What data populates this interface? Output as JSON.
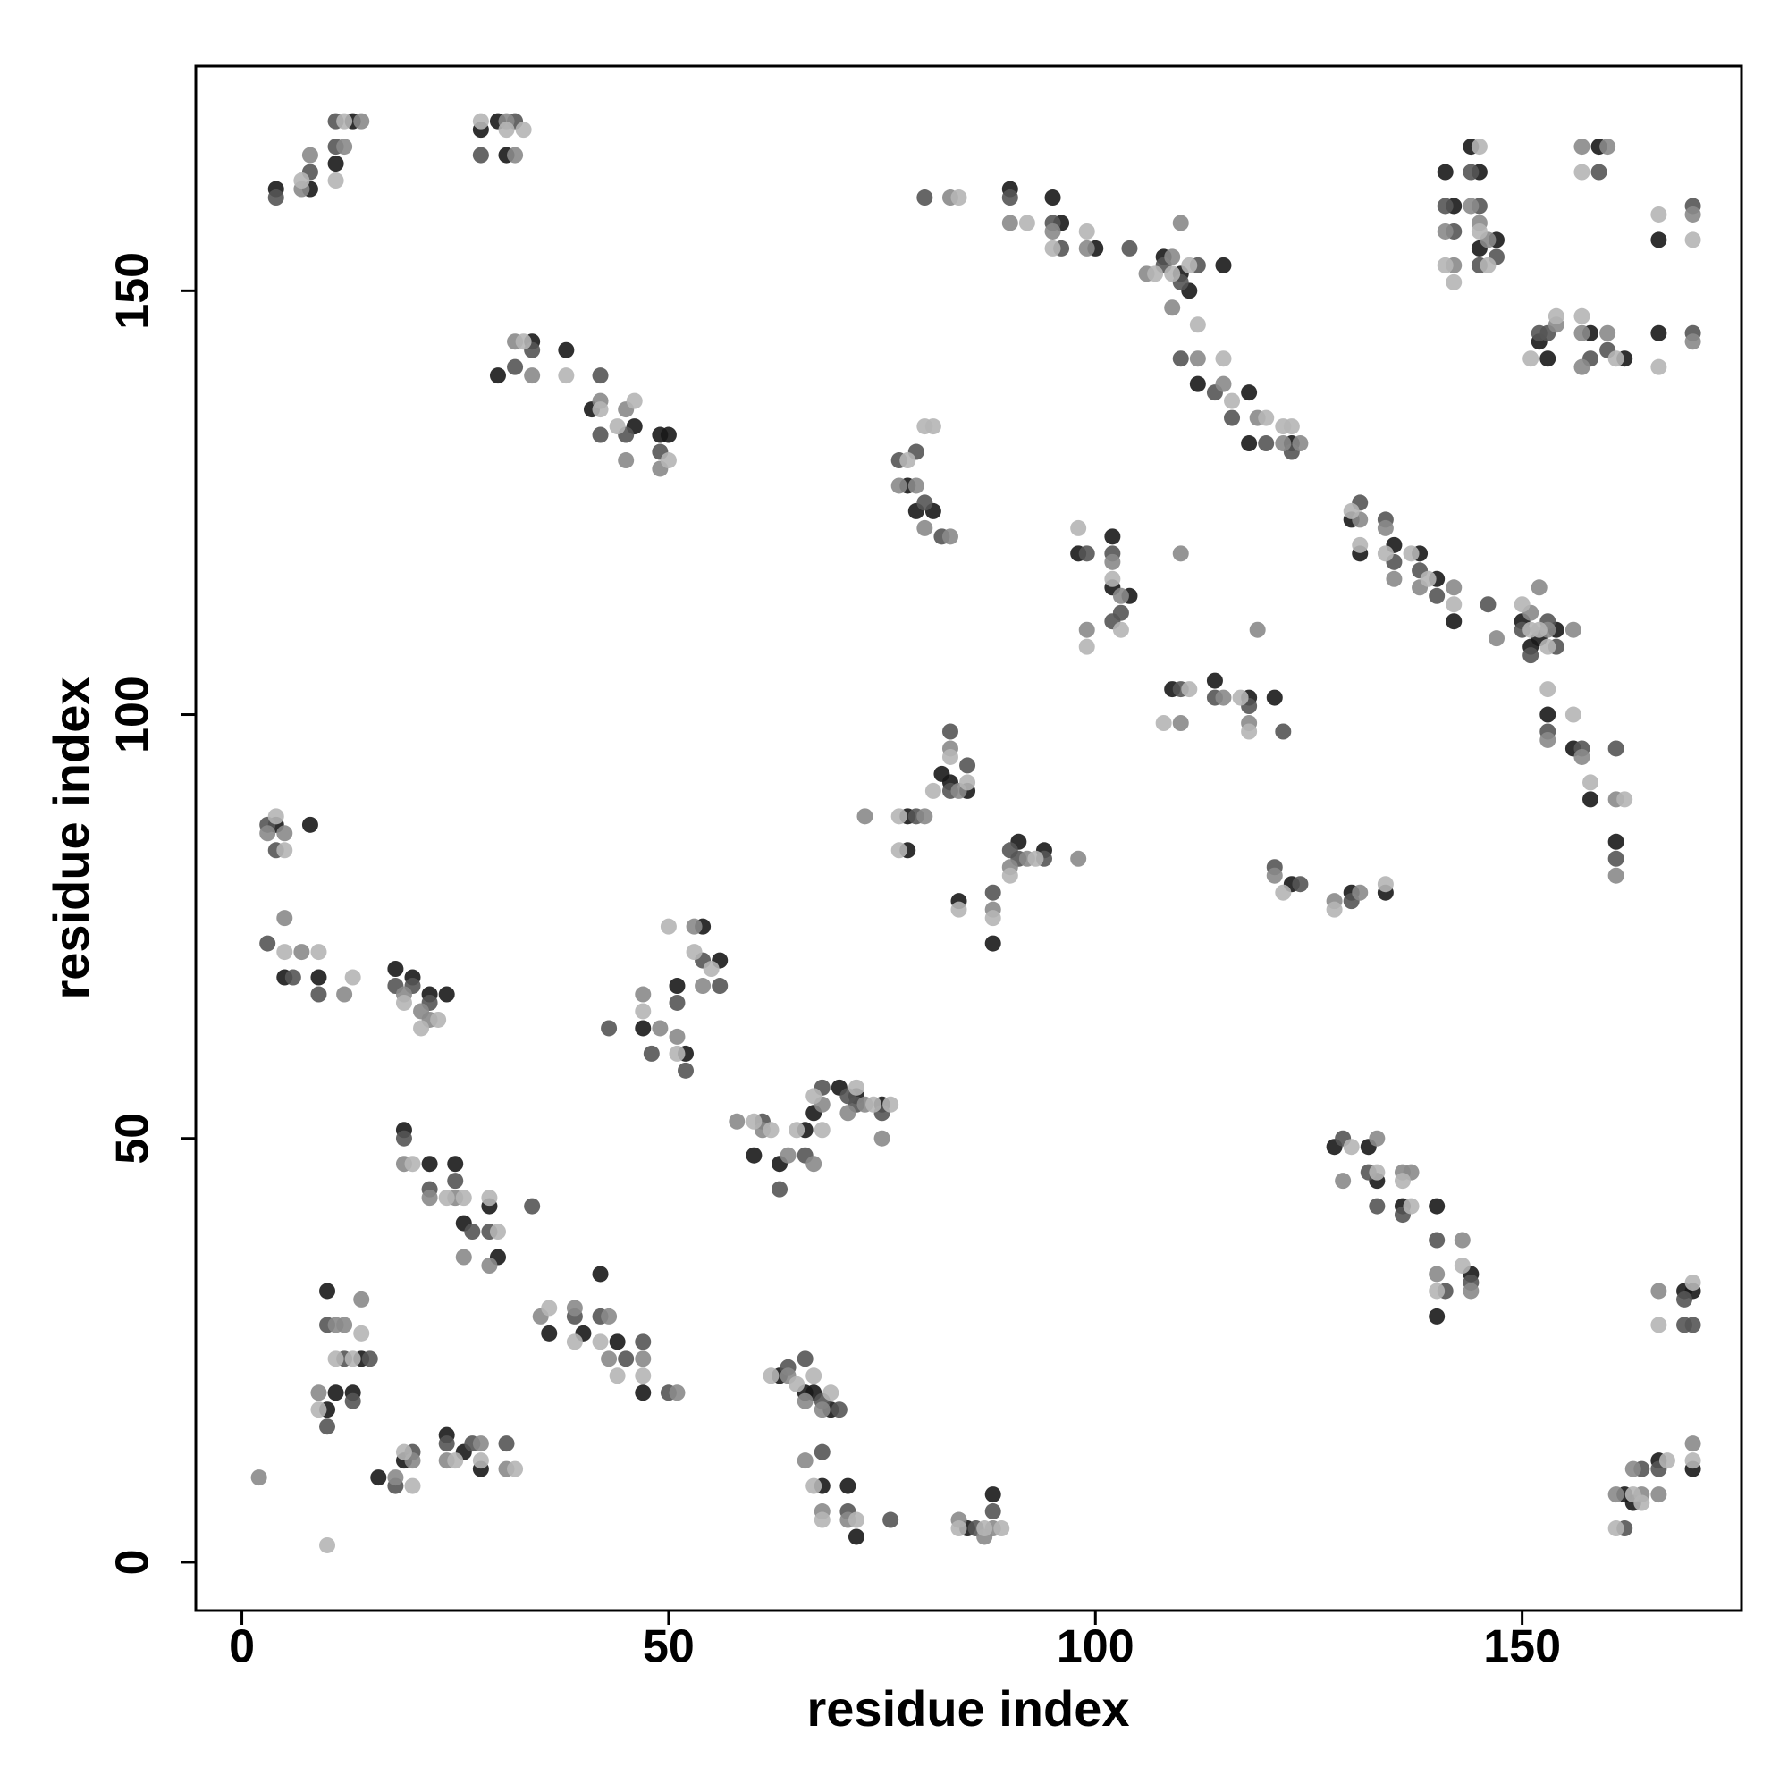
{
  "chart_data": {
    "type": "scatter",
    "xlabel": "residue index",
    "ylabel": "residue index",
    "xlim": [
      -5.4,
      175.7
    ],
    "ylim": [
      -5.7,
      176.5
    ],
    "xticks": [
      0,
      50,
      100,
      150
    ],
    "yticks": [
      0,
      50,
      100,
      150
    ],
    "series": [
      {
        "color": "#1a1a1a",
        "x": [
          4,
          8,
          11,
          13,
          28,
          31,
          30,
          90,
          95,
          96,
          100,
          108,
          110,
          111,
          115,
          112,
          118,
          118,
          123,
          141,
          142,
          144,
          145,
          145,
          147,
          159,
          166,
          153,
          152,
          158,
          162,
          166,
          30,
          34,
          38,
          41,
          46,
          49,
          50,
          78,
          79,
          81,
          98,
          102,
          102,
          104,
          109,
          114,
          118,
          121,
          130,
          131,
          135,
          138,
          140,
          142,
          150,
          151,
          152,
          154,
          153,
          156,
          158,
          161,
          82,
          83,
          85,
          78,
          78,
          91,
          94,
          84,
          88,
          123,
          130,
          134,
          4,
          8,
          5,
          9,
          18,
          20,
          22,
          24,
          47,
          51,
          52,
          54,
          56,
          60,
          63,
          66,
          67,
          70,
          72,
          75,
          19,
          22,
          25,
          26,
          29,
          30,
          36,
          40,
          44,
          42,
          47,
          63,
          66,
          67,
          69,
          68,
          71,
          72,
          85,
          88,
          10,
          11,
          13,
          14,
          10,
          16,
          19,
          24,
          26,
          28,
          128,
          132,
          133,
          136,
          140,
          140,
          144,
          169,
          170,
          170,
          162,
          163,
          166
        ],
        "values": [
          162,
          162,
          165,
          170,
          169,
          166,
          170,
          162,
          161,
          158,
          155,
          154,
          152,
          150,
          153,
          139,
          138,
          132,
          132,
          164,
          160,
          167,
          164,
          155,
          156,
          167,
          156,
          142,
          144,
          145,
          142,
          145,
          140,
          144,
          143,
          136,
          134,
          133,
          133,
          127,
          124,
          124,
          119,
          121,
          115,
          114,
          103,
          104,
          102,
          102,
          123,
          119,
          120,
          119,
          116,
          111,
          111,
          108,
          109,
          110,
          100,
          96,
          90,
          85,
          93,
          92,
          91,
          88,
          84,
          85,
          84,
          78,
          73,
          80,
          79,
          79,
          87,
          87,
          69,
          69,
          70,
          69,
          67,
          67,
          63,
          68,
          60,
          75,
          71,
          48,
          47,
          51,
          53,
          56,
          55,
          54,
          51,
          47,
          47,
          40,
          42,
          36,
          27,
          27,
          26,
          34,
          20,
          22,
          20,
          20,
          18,
          9,
          9,
          3,
          4,
          8,
          32,
          20,
          20,
          24,
          18,
          10,
          12,
          15,
          13,
          11,
          49,
          49,
          45,
          42,
          42,
          29,
          34,
          32,
          32,
          11,
          8,
          7,
          12
        ]
      },
      {
        "color": "#555555",
        "x": [
          4,
          8,
          11,
          11,
          28,
          32,
          80,
          90,
          95,
          96,
          104,
          108,
          110,
          112,
          110,
          114,
          116,
          120,
          123,
          141,
          142,
          144,
          145,
          145,
          147,
          159,
          170,
          153,
          152,
          160,
          158,
          170,
          32,
          34,
          42,
          42,
          45,
          49,
          77,
          79,
          80,
          82,
          99,
          102,
          102,
          103,
          110,
          114,
          118,
          122,
          131,
          134,
          135,
          138,
          140,
          146,
          150,
          151,
          153,
          154,
          153,
          157,
          161,
          161,
          83,
          83,
          85,
          79,
          90,
          91,
          94,
          88,
          121,
          124,
          130,
          3,
          4,
          3,
          6,
          9,
          18,
          20,
          22,
          43,
          48,
          51,
          52,
          54,
          56,
          61,
          63,
          66,
          68,
          71,
          72,
          75,
          19,
          22,
          25,
          27,
          29,
          34,
          39,
          42,
          45,
          47,
          50,
          64,
          66,
          68,
          70,
          68,
          71,
          76,
          86,
          88,
          10,
          12,
          13,
          15,
          10,
          18,
          20,
          24,
          27,
          31,
          129,
          132,
          133,
          136,
          140,
          141,
          144,
          169,
          170,
          169,
          162,
          164,
          166
        ],
        "values": [
          161,
          164,
          167,
          170,
          166,
          170,
          161,
          161,
          158,
          155,
          155,
          153,
          151,
          153,
          142,
          138,
          135,
          132,
          131,
          160,
          157,
          164,
          160,
          153,
          154,
          164,
          160,
          145,
          145,
          143,
          142,
          145,
          141,
          143,
          140,
          133,
          133,
          131,
          130,
          131,
          125,
          121,
          119,
          119,
          111,
          112,
          103,
          102,
          101,
          98,
          125,
          123,
          118,
          117,
          114,
          113,
          110,
          107,
          111,
          108,
          98,
          96,
          96,
          83,
          98,
          91,
          94,
          88,
          84,
          83,
          83,
          79,
          82,
          80,
          78,
          87,
          84,
          73,
          69,
          67,
          68,
          68,
          66,
          63,
          60,
          66,
          58,
          71,
          68,
          52,
          44,
          48,
          56,
          55,
          54,
          53,
          50,
          44,
          45,
          39,
          39,
          42,
          29,
          29,
          24,
          26,
          20,
          23,
          24,
          19,
          18,
          13,
          6,
          5,
          4,
          6,
          28,
          24,
          19,
          24,
          16,
          9,
          13,
          14,
          14,
          14,
          50,
          46,
          42,
          41,
          38,
          32,
          33,
          31,
          28,
          28,
          4,
          11,
          11
        ]
      },
      {
        "color": "#8a8a8a",
        "x": [
          7,
          8,
          12,
          14,
          31,
          32,
          83,
          90,
          95,
          99,
          106,
          109,
          110,
          109,
          112,
          115,
          119,
          122,
          124,
          141,
          142,
          144,
          145,
          146,
          157,
          160,
          170,
          154,
          157,
          160,
          157,
          170,
          32,
          34,
          42,
          45,
          45,
          49,
          77,
          79,
          80,
          83,
          99,
          102,
          103,
          110,
          110,
          115,
          118,
          119,
          131,
          134,
          135,
          138,
          142,
          147,
          151,
          152,
          153,
          156,
          153,
          157,
          161,
          161,
          83,
          84,
          73,
          80,
          90,
          92,
          98,
          88,
          121,
          128,
          131,
          3,
          5,
          5,
          7,
          12,
          19,
          21,
          22,
          47,
          49,
          51,
          53,
          54,
          58,
          61,
          64,
          67,
          68,
          71,
          73,
          75,
          19,
          22,
          25,
          26,
          29,
          35,
          39,
          43,
          43,
          47,
          51,
          64,
          66,
          68,
          66,
          68,
          71,
          84,
          87,
          88,
          11,
          12,
          14,
          9,
          2,
          18,
          20,
          24,
          28,
          31,
          129,
          133,
          136,
          137,
          140,
          143,
          144,
          166,
          170,
          161,
          163,
          164,
          166
        ],
        "values": [
          162,
          166,
          167,
          170,
          170,
          166,
          161,
          158,
          157,
          155,
          152,
          154,
          158,
          148,
          142,
          139,
          135,
          132,
          132,
          157,
          153,
          160,
          158,
          156,
          167,
          167,
          159,
          146,
          145,
          145,
          141,
          144,
          144,
          140,
          137,
          136,
          130,
          129,
          127,
          127,
          122,
          121,
          110,
          118,
          114,
          119,
          99,
          102,
          99,
          110,
          123,
          122,
          116,
          115,
          115,
          109,
          112,
          115,
          110,
          110,
          97,
          95,
          90,
          81,
          96,
          91,
          88,
          88,
          82,
          83,
          83,
          77,
          81,
          78,
          79,
          86,
          86,
          76,
          72,
          67,
          67,
          65,
          64,
          67,
          63,
          62,
          75,
          68,
          52,
          51,
          48,
          47,
          54,
          53,
          54,
          50,
          47,
          43,
          43,
          36,
          35,
          29,
          30,
          29,
          24,
          24,
          20,
          22,
          19,
          18,
          12,
          6,
          5,
          5,
          3,
          4,
          28,
          28,
          31,
          20,
          10,
          10,
          12,
          12,
          14,
          11,
          45,
          50,
          46,
          46,
          34,
          38,
          32,
          32,
          14,
          8,
          11,
          8,
          8
        ]
      },
      {
        "color": "#b5b5b5",
        "x": [
          7,
          11,
          12,
          28,
          31,
          33,
          84,
          92,
          95,
          99,
          107,
          109,
          111,
          112,
          115,
          116,
          120,
          122,
          123,
          141,
          142,
          145,
          145,
          146,
          157,
          166,
          170,
          154,
          157,
          161,
          166,
          151,
          33,
          38,
          42,
          46,
          44,
          50,
          78,
          80,
          81,
          98,
          99,
          102,
          103,
          108,
          111,
          117,
          118,
          130,
          131,
          134,
          137,
          139,
          142,
          150,
          151,
          152,
          153,
          153,
          156,
          158,
          162,
          81,
          83,
          85,
          77,
          77,
          90,
          93,
          84,
          88,
          122,
          128,
          134,
          4,
          5,
          5,
          9,
          13,
          19,
          21,
          23,
          47,
          50,
          51,
          53,
          55,
          60,
          62,
          65,
          67,
          68,
          72,
          74,
          76,
          20,
          24,
          26,
          29,
          30,
          36,
          39,
          42,
          44,
          47,
          62,
          65,
          67,
          69,
          67,
          68,
          72,
          84,
          87,
          89,
          11,
          13,
          14,
          9,
          10,
          19,
          20,
          25,
          28,
          32,
          130,
          133,
          136,
          137,
          140,
          143,
          170,
          166,
          170,
          161,
          163,
          164,
          167
        ],
        "values": [
          163,
          163,
          170,
          170,
          169,
          169,
          161,
          158,
          155,
          157,
          152,
          152,
          153,
          146,
          142,
          137,
          135,
          134,
          134,
          153,
          151,
          167,
          157,
          153,
          164,
          159,
          156,
          147,
          147,
          142,
          141,
          142,
          144,
          140,
          136,
          137,
          134,
          130,
          130,
          134,
          134,
          122,
          108,
          116,
          110,
          99,
          103,
          102,
          98,
          124,
          120,
          119,
          119,
          116,
          113,
          113,
          110,
          110,
          108,
          103,
          100,
          92,
          90,
          91,
          95,
          92,
          88,
          84,
          81,
          83,
          77,
          76,
          79,
          77,
          80,
          88,
          84,
          72,
          72,
          69,
          66,
          63,
          64,
          65,
          75,
          60,
          72,
          70,
          52,
          51,
          51,
          55,
          51,
          56,
          54,
          54,
          47,
          43,
          43,
          43,
          39,
          30,
          26,
          26,
          22,
          22,
          22,
          21,
          22,
          20,
          9,
          5,
          5,
          4,
          4,
          4,
          24,
          24,
          27,
          18,
          2,
          13,
          9,
          12,
          12,
          11,
          49,
          46,
          45,
          42,
          32,
          35,
          33,
          28,
          12,
          4,
          8,
          7,
          12
        ]
      }
    ]
  }
}
